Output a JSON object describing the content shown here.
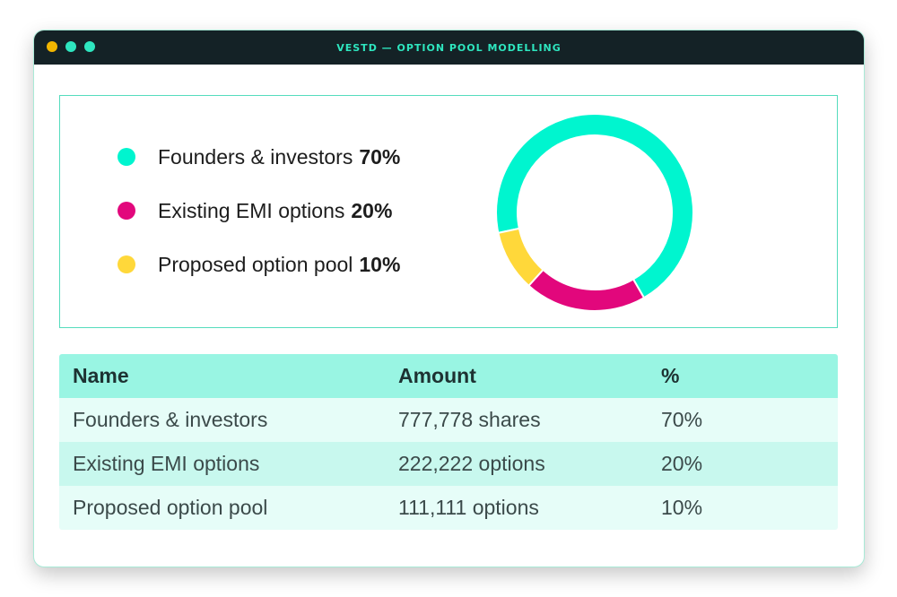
{
  "window": {
    "title": "VESTD — OPTION POOL MODELLING",
    "controls": [
      {
        "name": "close",
        "color": "#f2b600"
      },
      {
        "name": "minimize",
        "color": "#2ee6bf"
      },
      {
        "name": "maximize",
        "color": "#2ee6bf"
      }
    ]
  },
  "legend": {
    "items": [
      {
        "label": "Founders & investors",
        "pct": "70%",
        "color": "#00f5cf"
      },
      {
        "label": "Existing EMI options",
        "pct": "20%",
        "color": "#e2077c"
      },
      {
        "label": "Proposed option pool",
        "pct": "10%",
        "color": "#ffd83a"
      }
    ]
  },
  "chart_data": {
    "type": "pie",
    "donut": true,
    "slices": [
      {
        "label": "Founders & investors",
        "value": 70,
        "color": "#00f5cf"
      },
      {
        "label": "Existing EMI options",
        "value": 20,
        "color": "#e2077c"
      },
      {
        "label": "Proposed option pool",
        "value": 10,
        "color": "#ffd83a"
      }
    ]
  },
  "table": {
    "headers": [
      "Name",
      "Amount",
      "%"
    ],
    "rows": [
      [
        "Founders & investors",
        "777,778 shares",
        "70%"
      ],
      [
        "Existing EMI options",
        "222,222 options",
        "20%"
      ],
      [
        "Proposed option pool",
        "111,111 options",
        "10%"
      ]
    ]
  }
}
